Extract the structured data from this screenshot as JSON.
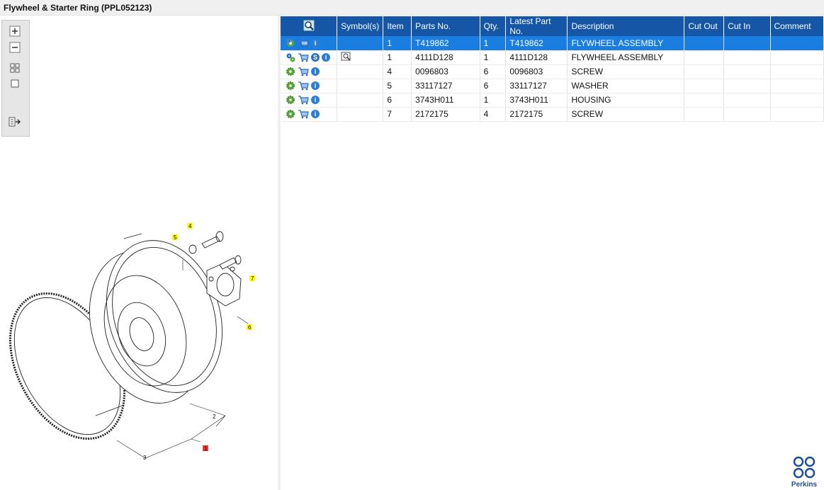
{
  "window": {
    "title": "Flywheel & Starter Ring (PPL052123)"
  },
  "toolbar": {
    "zoom_in": "zoom-in",
    "zoom_out": "zoom-out",
    "fit_all": "fit-all",
    "fit_page": "fit-page",
    "export": "export"
  },
  "diagram": {
    "callouts": [
      "4",
      "5",
      "7",
      "6",
      "2",
      "1",
      "3"
    ],
    "highlight_colors": {
      "yellow": "#ffff00",
      "red": "#ff3030"
    }
  },
  "table": {
    "columns": [
      "",
      "Symbol(s)",
      "Item",
      "Parts No.",
      "Qty.",
      "Latest Part No.",
      "Description",
      "Cut Out",
      "Cut In",
      "Comment"
    ],
    "rows": [
      {
        "icons": [
          "assembly-gear-icon",
          "cart-icon",
          "info-icon"
        ],
        "symbol": "",
        "item": "1",
        "part": "T419862",
        "qty": "1",
        "latest": "T419862",
        "desc": "FLYWHEEL ASSEMBLY",
        "cut_out": "",
        "cut_in": "",
        "comment": "",
        "selected": true
      },
      {
        "icons": [
          "gears-icon",
          "cart-icon",
          "s-icon",
          "info-icon"
        ],
        "symbol": "book-search-icon",
        "item": "1",
        "part": "4111D128",
        "qty": "1",
        "latest": "4111D128",
        "desc": "FLYWHEEL ASSEMBLY",
        "cut_out": "",
        "cut_in": "",
        "comment": ""
      },
      {
        "icons": [
          "gear-icon",
          "cart-icon",
          "info-icon"
        ],
        "symbol": "",
        "item": "4",
        "part": "0096803",
        "qty": "6",
        "latest": "0096803",
        "desc": "SCREW",
        "cut_out": "",
        "cut_in": "",
        "comment": ""
      },
      {
        "icons": [
          "gear-icon",
          "cart-icon",
          "info-icon"
        ],
        "symbol": "",
        "item": "5",
        "part": "33117127",
        "qty": "6",
        "latest": "33117127",
        "desc": "WASHER",
        "cut_out": "",
        "cut_in": "",
        "comment": ""
      },
      {
        "icons": [
          "gear-icon",
          "cart-icon",
          "info-icon"
        ],
        "symbol": "",
        "item": "6",
        "part": "3743H011",
        "qty": "1",
        "latest": "3743H011",
        "desc": "HOUSING",
        "cut_out": "",
        "cut_in": "",
        "comment": ""
      },
      {
        "icons": [
          "gear-icon",
          "cart-icon",
          "info-icon"
        ],
        "symbol": "",
        "item": "7",
        "part": "2172175",
        "qty": "4",
        "latest": "2172175",
        "desc": "SCREW",
        "cut_out": "",
        "cut_in": "",
        "comment": ""
      }
    ]
  },
  "brand": {
    "name": "Perkins",
    "color": "#1a4f9e"
  }
}
